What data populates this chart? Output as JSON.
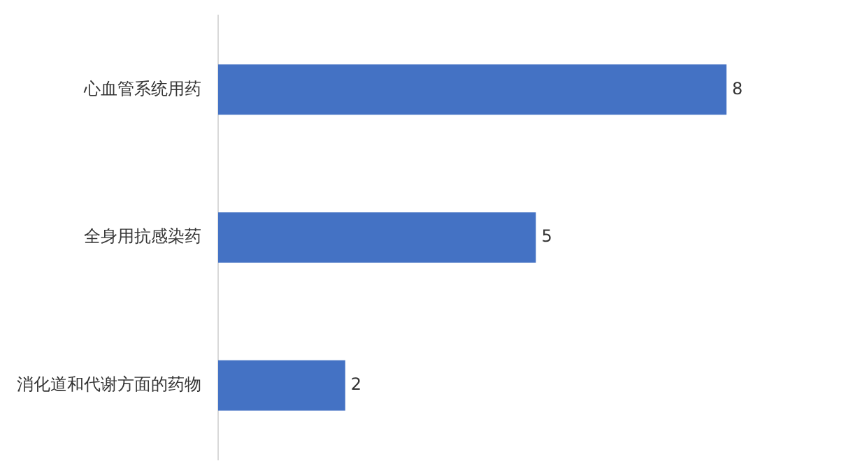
{
  "chart_data": {
    "type": "bar",
    "orientation": "horizontal",
    "categories": [
      "心血管系统用药",
      "全身用抗感染药",
      "消化道和代谢方面的药物"
    ],
    "values": [
      8,
      5,
      2
    ],
    "color": "#4472c4",
    "data_labels": true,
    "legend": false
  }
}
